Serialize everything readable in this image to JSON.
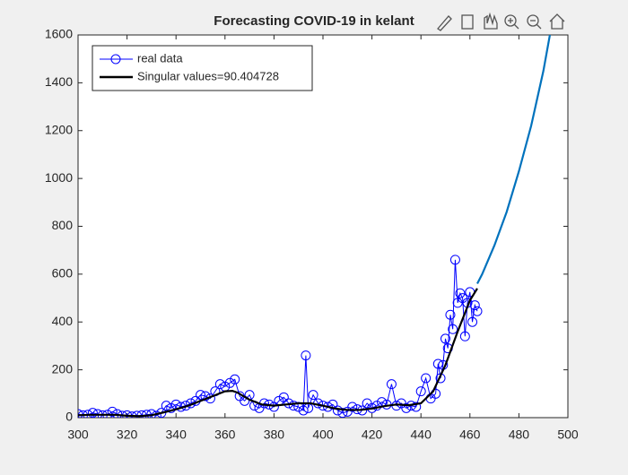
{
  "chart_data": {
    "type": "line",
    "title": "Forecasting COVID-19 in kelant",
    "xlim": [
      300,
      500
    ],
    "ylim": [
      0,
      1600
    ],
    "xticks": [
      300,
      320,
      340,
      360,
      380,
      400,
      420,
      440,
      460,
      480,
      500
    ],
    "yticks": [
      0,
      200,
      400,
      600,
      800,
      1000,
      1200,
      1400,
      1600
    ],
    "legend": "upper-left",
    "series": [
      {
        "name": "real data",
        "color": "#0000ff",
        "marker": "circle",
        "x": [
          300,
          302,
          304,
          306,
          308,
          310,
          312,
          314,
          316,
          318,
          320,
          322,
          324,
          326,
          328,
          330,
          332,
          334,
          336,
          338,
          340,
          342,
          344,
          346,
          348,
          350,
          352,
          354,
          356,
          358,
          360,
          362,
          364,
          366,
          368,
          370,
          372,
          374,
          376,
          378,
          380,
          382,
          384,
          386,
          388,
          390,
          392,
          393,
          394,
          396,
          398,
          400,
          402,
          404,
          406,
          408,
          410,
          412,
          414,
          416,
          418,
          420,
          422,
          424,
          426,
          428,
          430,
          432,
          434,
          436,
          438,
          440,
          442,
          444,
          446,
          447,
          448,
          449,
          450,
          451,
          452,
          453,
          454,
          455,
          456,
          457,
          458,
          459,
          460,
          461,
          462,
          463
        ],
        "values": [
          15,
          10,
          12,
          20,
          15,
          10,
          12,
          25,
          15,
          8,
          10,
          5,
          8,
          10,
          12,
          15,
          8,
          20,
          50,
          40,
          55,
          45,
          50,
          60,
          70,
          95,
          90,
          80,
          110,
          140,
          130,
          145,
          160,
          90,
          70,
          95,
          50,
          40,
          60,
          55,
          45,
          70,
          85,
          60,
          50,
          45,
          30,
          260,
          40,
          95,
          60,
          50,
          45,
          55,
          30,
          20,
          25,
          45,
          35,
          30,
          60,
          40,
          50,
          65,
          55,
          140,
          50,
          60,
          40,
          50,
          45,
          110,
          165,
          80,
          100,
          225,
          165,
          220,
          330,
          290,
          430,
          370,
          660,
          480,
          520,
          500,
          340,
          480,
          525,
          400,
          470,
          445
        ]
      },
      {
        "name": "Singular values=90.404728",
        "color": "#000000",
        "x": [
          300,
          305,
          310,
          315,
          320,
          325,
          330,
          335,
          340,
          345,
          350,
          355,
          360,
          363,
          365,
          370,
          375,
          380,
          385,
          390,
          395,
          400,
          405,
          410,
          415,
          420,
          425,
          430,
          435,
          440,
          445,
          450,
          455,
          460,
          463
        ],
        "values": [
          10,
          12,
          12,
          12,
          8,
          6,
          10,
          22,
          35,
          50,
          70,
          90,
          110,
          112,
          105,
          75,
          55,
          50,
          55,
          60,
          60,
          50,
          38,
          32,
          32,
          38,
          48,
          55,
          52,
          60,
          110,
          220,
          360,
          490,
          540
        ]
      },
      {
        "color": "#0072bd",
        "x": [
          463,
          465,
          470,
          475,
          480,
          485,
          490,
          493
        ],
        "values": [
          560,
          600,
          720,
          860,
          1030,
          1220,
          1450,
          1620
        ]
      }
    ]
  }
}
